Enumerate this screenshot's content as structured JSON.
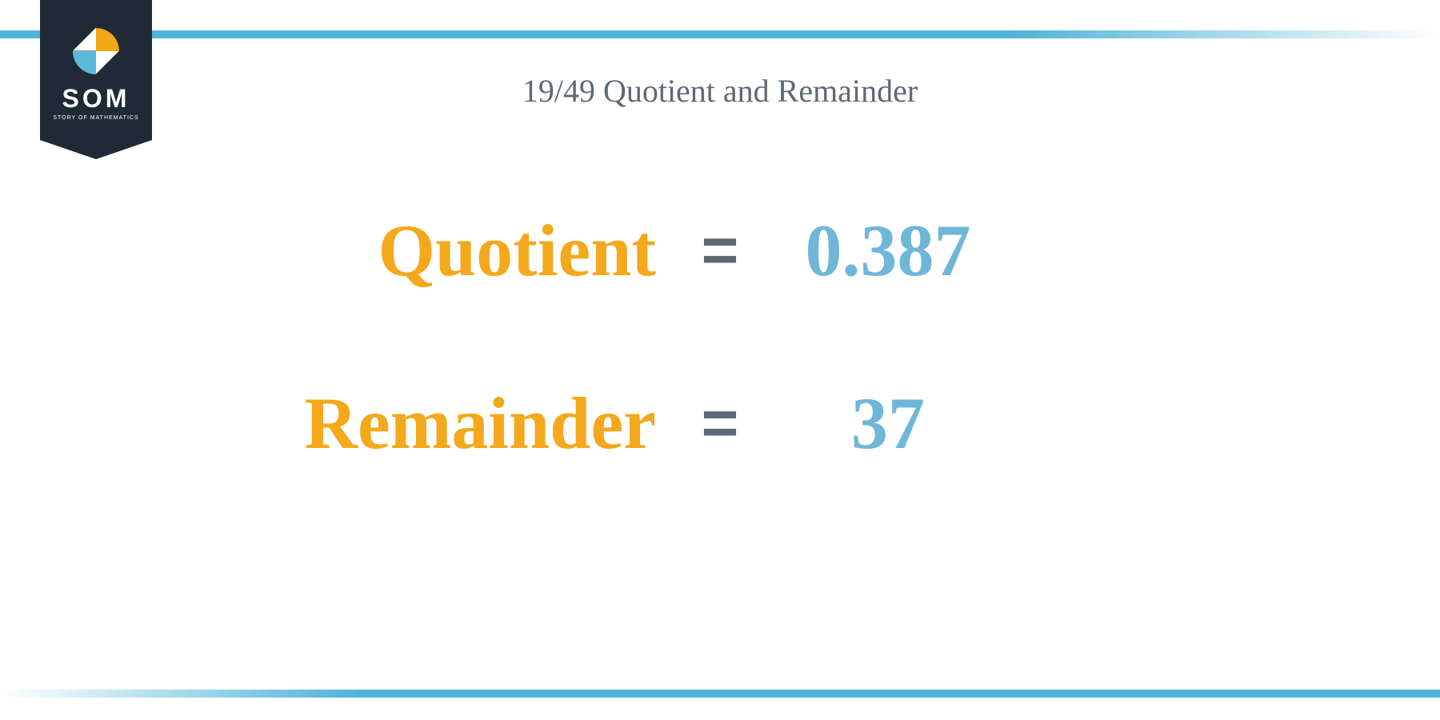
{
  "brand": {
    "name": "SOM",
    "tagline": "STORY OF MATHEMATICS",
    "colors": {
      "badge_bg": "#1f2a36",
      "accent_orange": "#f2a516",
      "accent_blue": "#5bb9d8",
      "white": "#ffffff"
    }
  },
  "title": "19/49 Quotient and Remainder",
  "rows": [
    {
      "label": "Quotient",
      "value": "0.387"
    },
    {
      "label": "Remainder",
      "value": "37"
    }
  ],
  "style": {
    "label_color": "#f4a81c",
    "value_color": "#6fb7d9",
    "equals_color": "#5e6a73",
    "title_color": "#5e6a73",
    "bar_color": "#4fb4d8",
    "label_fontsize": 92,
    "value_fontsize": 92,
    "title_fontsize": 40,
    "equals_symbol": "="
  }
}
